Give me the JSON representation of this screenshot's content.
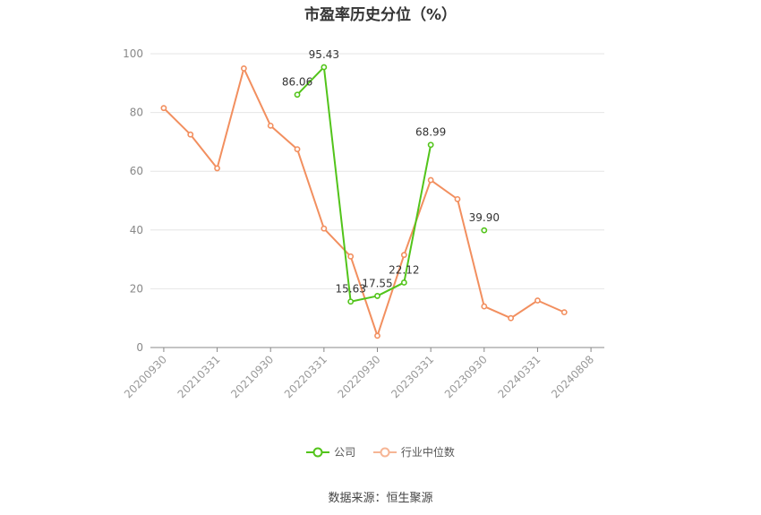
{
  "chart_data": {
    "type": "line",
    "title": "市盈率历史分位（%）",
    "x_ticks": [
      "20200930",
      "20210331",
      "20210930",
      "20220331",
      "20220930",
      "20230331",
      "20230930",
      "20240331",
      "20240808"
    ],
    "ylim": [
      0,
      100
    ],
    "y_ticks": [
      0,
      20,
      40,
      60,
      80,
      100
    ],
    "grid": true,
    "legend_position": "bottom",
    "series": [
      {
        "name": "公司",
        "color": "#52c41a",
        "points": [
          {
            "x": 5,
            "y": 86.06,
            "label": "86.06"
          },
          {
            "x": 6,
            "y": 95.43,
            "label": "95.43"
          },
          {
            "x": 7,
            "y": 15.63,
            "label": "15.63"
          },
          {
            "x": 8,
            "y": 17.55,
            "label": "17.55"
          },
          {
            "x": 9,
            "y": 22.12,
            "label": "22.12"
          },
          {
            "x": 10,
            "y": 68.99,
            "label": "68.99"
          },
          {
            "x": 12,
            "y": 39.9,
            "label": "39.90"
          }
        ]
      },
      {
        "name": "行业中位数",
        "color": "#f28f5f",
        "points": [
          {
            "x": 0,
            "y": 81.5
          },
          {
            "x": 1,
            "y": 72.5
          },
          {
            "x": 2,
            "y": 61.0
          },
          {
            "x": 3,
            "y": 95.0
          },
          {
            "x": 4,
            "y": 75.5
          },
          {
            "x": 5,
            "y": 67.5
          },
          {
            "x": 6,
            "y": 40.5
          },
          {
            "x": 7,
            "y": 31.0
          },
          {
            "x": 8,
            "y": 4.0
          },
          {
            "x": 9,
            "y": 31.5
          },
          {
            "x": 10,
            "y": 57.0
          },
          {
            "x": 11,
            "y": 50.5
          },
          {
            "x": 12,
            "y": 14.0
          },
          {
            "x": 13,
            "y": 10.0
          },
          {
            "x": 14,
            "y": 16.0
          },
          {
            "x": 15,
            "y": 12.0
          }
        ]
      }
    ]
  },
  "legend": {
    "company": "公司",
    "industry": "行业中位数"
  },
  "source": "数据来源：恒生聚源"
}
